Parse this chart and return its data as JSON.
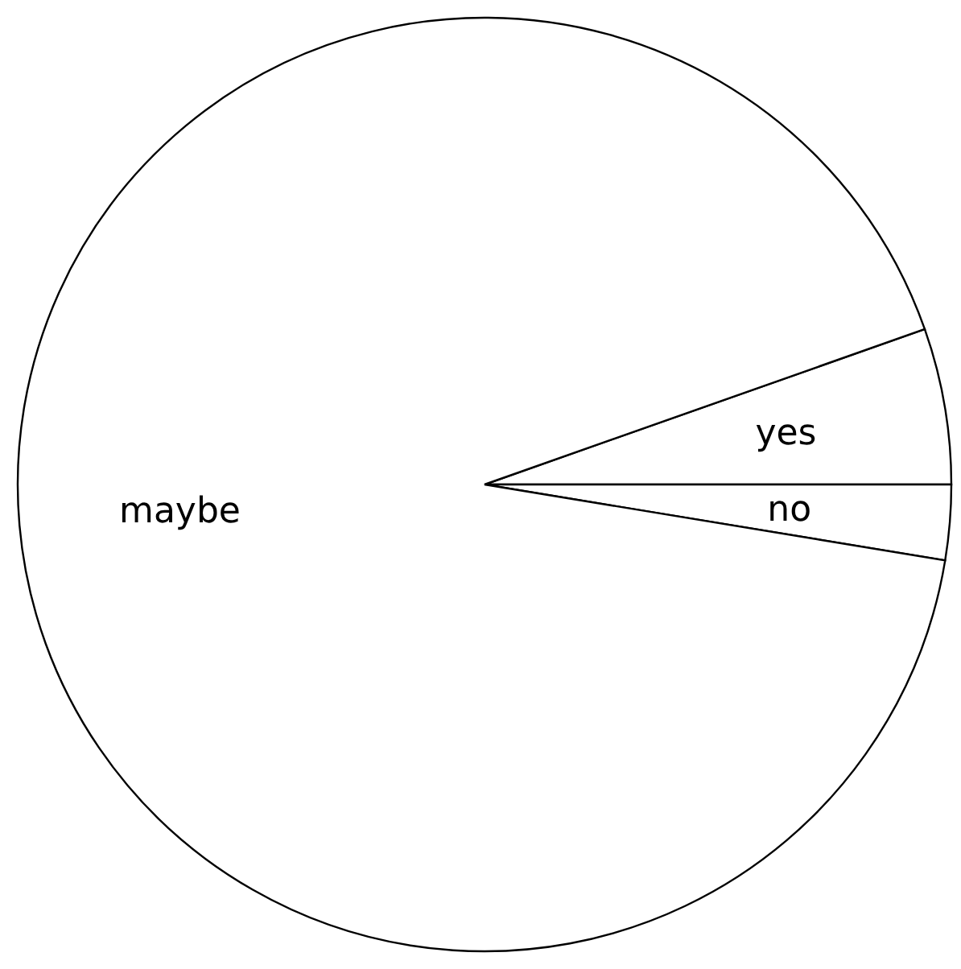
{
  "chart_data": {
    "type": "pie",
    "categories": [
      "yes",
      "no",
      "maybe"
    ],
    "values": [
      5.4,
      2.6,
      92
    ],
    "colors": [
      "#ffffff",
      "#ffffff",
      "#ffffff"
    ]
  }
}
